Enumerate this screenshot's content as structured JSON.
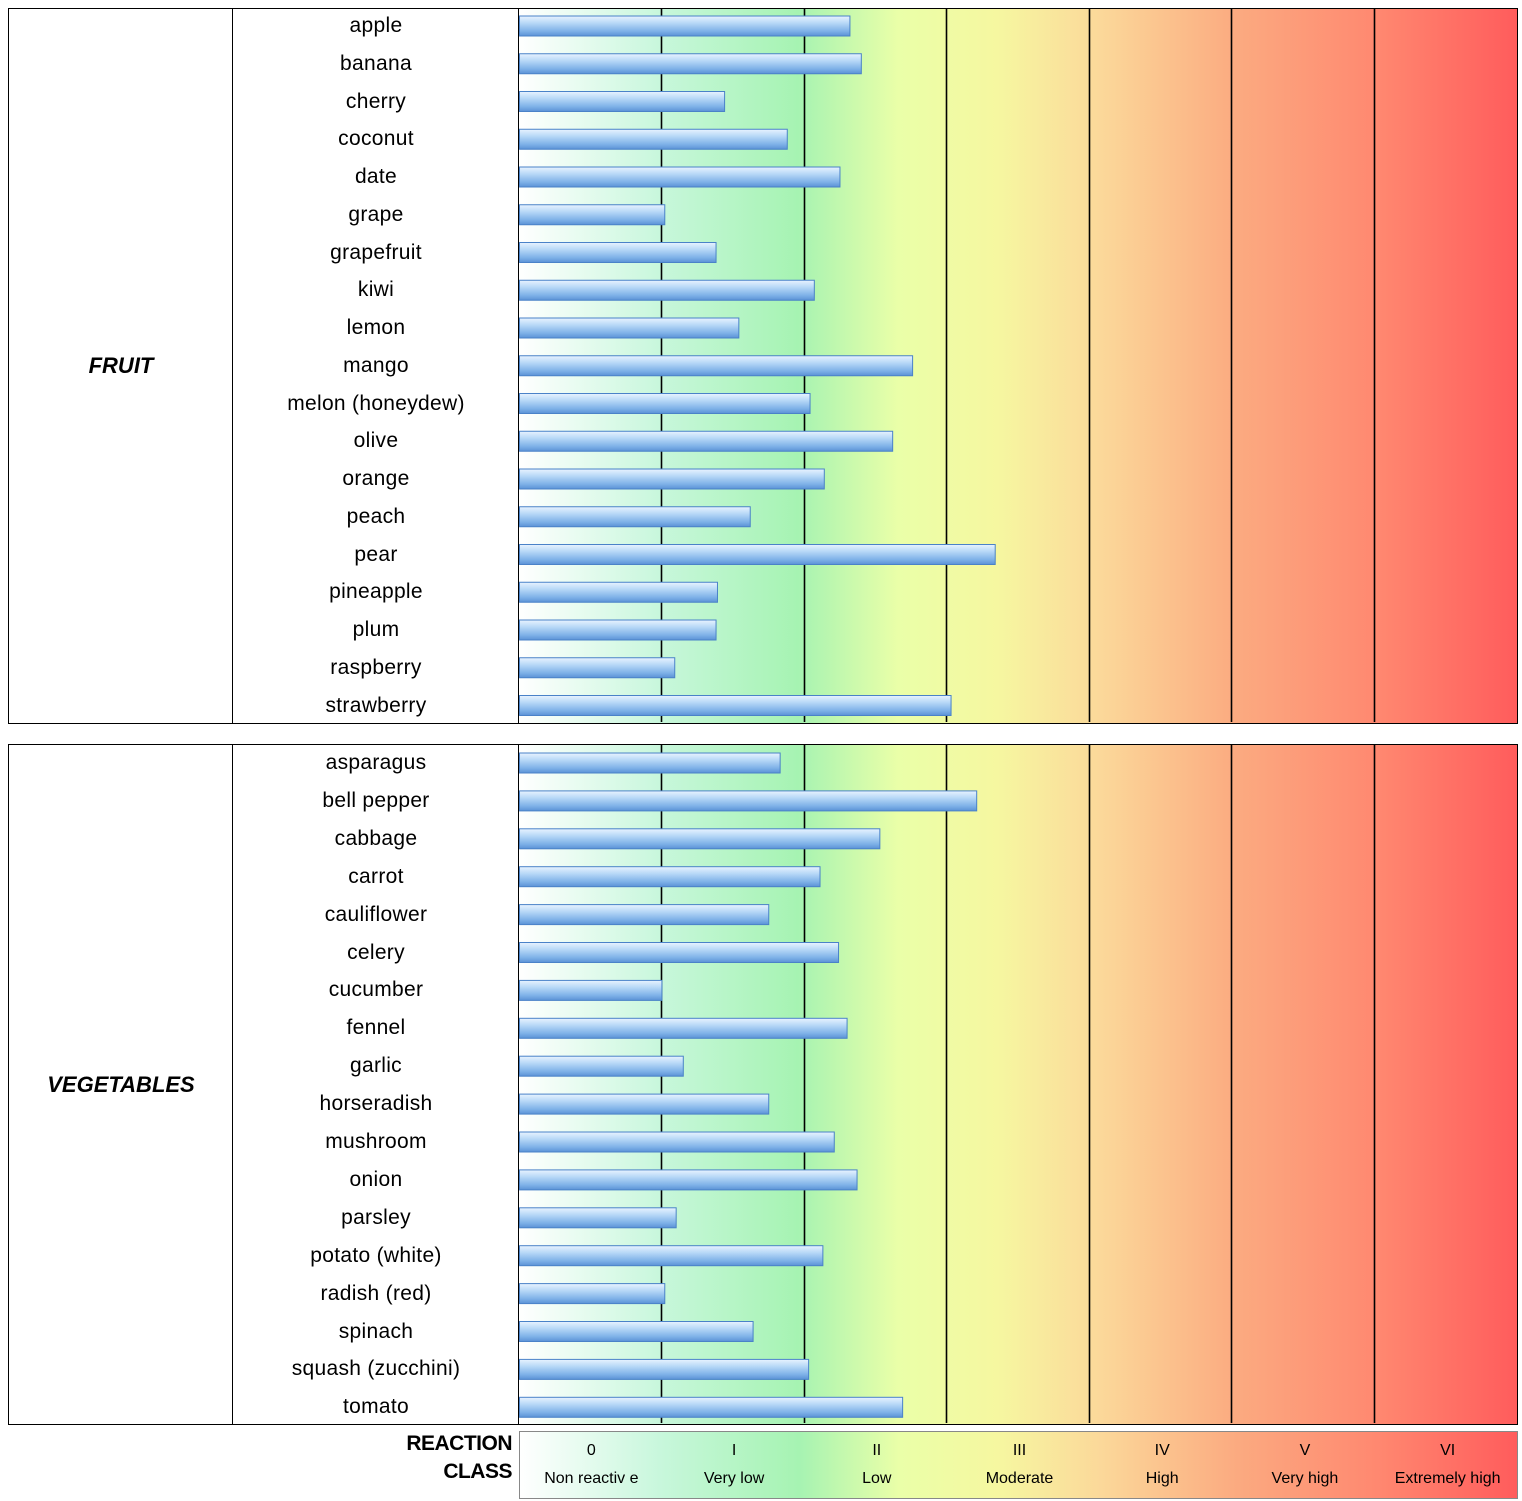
{
  "chart_data": {
    "type": "bar",
    "orientation": "horizontal",
    "xlim": [
      0,
      7
    ],
    "grid": true,
    "gridlines_at": [
      1,
      2,
      3,
      4,
      5,
      6
    ],
    "panels": [
      {
        "group": "FRUIT",
        "categories": [
          "apple",
          "banana",
          "cherry",
          "coconut",
          "date",
          "grape",
          "grapefruit",
          "kiwi",
          "lemon",
          "mango",
          "melon (honeydew)",
          "olive",
          "orange",
          "peach",
          "pear",
          "pineapple",
          "plum",
          "raspberry",
          "strawberry"
        ],
        "values": [
          2.32,
          2.4,
          1.44,
          1.88,
          2.25,
          1.02,
          1.38,
          2.07,
          1.54,
          2.76,
          2.04,
          2.62,
          2.14,
          1.62,
          3.34,
          1.39,
          1.38,
          1.09,
          3.03
        ]
      },
      {
        "group": "VEGETABLES",
        "categories": [
          "asparagus",
          "bell pepper",
          "cabbage",
          "carrot",
          "cauliflower",
          "celery",
          "cucumber",
          "fennel",
          "garlic",
          "horseradish",
          "mushroom",
          "onion",
          "parsley",
          "potato (white)",
          "radish (red)",
          "spinach",
          "squash (zucchini)",
          "tomato"
        ],
        "values": [
          1.83,
          3.21,
          2.53,
          2.11,
          1.75,
          2.24,
          1.0,
          2.3,
          1.15,
          1.75,
          2.21,
          2.37,
          1.1,
          2.13,
          1.02,
          1.64,
          2.03,
          2.69
        ]
      }
    ],
    "legend": {
      "title_line1": "REACTION",
      "title_line2": "CLASS",
      "classes": [
        {
          "roman": "0",
          "label": "Non reactiv e"
        },
        {
          "roman": "I",
          "label": "Very  low"
        },
        {
          "roman": "II",
          "label": "Low"
        },
        {
          "roman": "III",
          "label": "Moderate"
        },
        {
          "roman": "IV",
          "label": "High"
        },
        {
          "roman": "V",
          "label": "Very  high"
        },
        {
          "roman": "VI",
          "label": "Extremely  high"
        }
      ]
    },
    "colors": {
      "bar_fill": "#9cc8f2",
      "bar_border": "#4a82c8",
      "gridline": "#000000"
    }
  }
}
